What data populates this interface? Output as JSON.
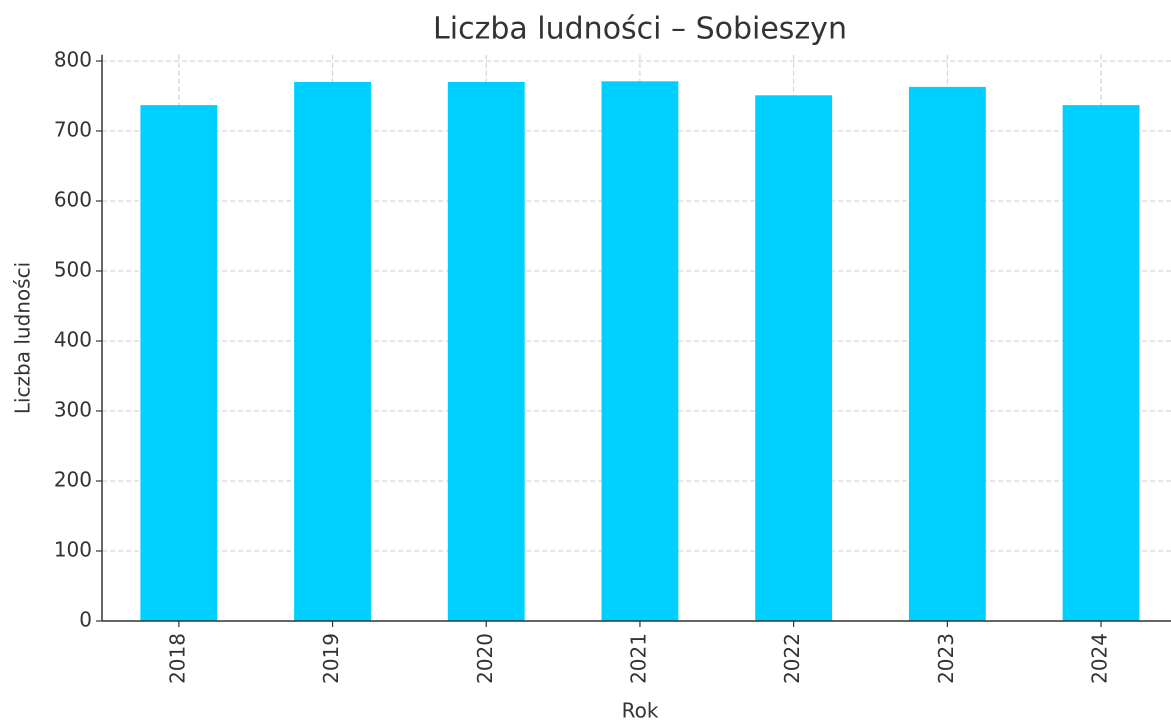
{
  "chart_data": {
    "type": "bar",
    "title": "Liczba ludności – Sobieszyn",
    "x_label": "Rok",
    "y_label": "Liczba ludności",
    "categories": [
      "2018",
      "2019",
      "2020",
      "2021",
      "2022",
      "2023",
      "2024"
    ],
    "values": [
      737,
      770,
      770,
      771,
      751,
      763,
      737
    ],
    "color": "#00d0ff",
    "ylim": [
      0,
      809
    ],
    "yticks": [
      0,
      100,
      200,
      300,
      400,
      500,
      600,
      700,
      800
    ],
    "grid": true
  }
}
